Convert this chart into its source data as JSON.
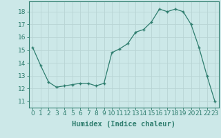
{
  "x": [
    0,
    1,
    2,
    3,
    4,
    5,
    6,
    7,
    8,
    9,
    10,
    11,
    12,
    13,
    14,
    15,
    16,
    17,
    18,
    19,
    20,
    21,
    22,
    23
  ],
  "y": [
    15.2,
    13.8,
    12.5,
    12.1,
    12.2,
    12.3,
    12.4,
    12.4,
    12.2,
    12.4,
    14.8,
    15.1,
    15.5,
    16.4,
    16.6,
    17.2,
    18.2,
    18.0,
    18.2,
    18.0,
    17.0,
    15.2,
    13.0,
    11.0
  ],
  "xlabel": "Humidex (Indice chaleur)",
  "xlim": [
    -0.5,
    23.5
  ],
  "ylim": [
    10.5,
    18.8
  ],
  "yticks": [
    11,
    12,
    13,
    14,
    15,
    16,
    17,
    18
  ],
  "xticks": [
    0,
    1,
    2,
    3,
    4,
    5,
    6,
    7,
    8,
    9,
    10,
    11,
    12,
    13,
    14,
    15,
    16,
    17,
    18,
    19,
    20,
    21,
    22,
    23
  ],
  "line_color": "#2e7d6e",
  "marker": "+",
  "bg_color": "#cce8e8",
  "grid_color": "#b8d4d4",
  "tick_color": "#2e7d6e",
  "xlabel_fontsize": 7.5,
  "tick_fontsize": 6.5
}
